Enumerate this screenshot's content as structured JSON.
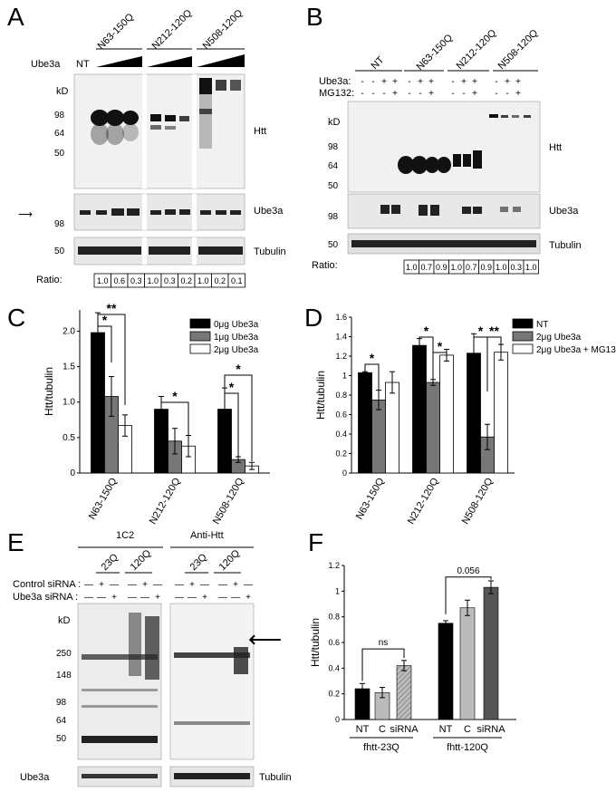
{
  "panels": {
    "A": {
      "letter": "A",
      "ube3a_label": "Ube3a",
      "nt": "NT",
      "groups": [
        "N63-150Q",
        "N212-120Q",
        "N508-120Q"
      ],
      "kd": "kD",
      "markers": [
        "98",
        "64",
        "50"
      ],
      "ube3a_marker": "98",
      "tub_marker": "50",
      "blot_labels": [
        "Htt",
        "Ube3a",
        "Tubulin"
      ],
      "ratio_label": "Ratio:",
      "ratios": [
        "1.0",
        "0.6",
        "0.3",
        "1.0",
        "0.3",
        "0.2",
        "1.0",
        "0.2",
        "0.1"
      ]
    },
    "B": {
      "letter": "B",
      "groups": [
        "NT",
        "N63-150Q",
        "N212-120Q",
        "N508-120Q"
      ],
      "row_labels": [
        "Ube3a:",
        "MG132:"
      ],
      "ube3a_signs": [
        "-",
        "-",
        "+",
        "+",
        "-",
        "+",
        "+",
        "-",
        "+",
        "+",
        "-",
        "+",
        "+"
      ],
      "mg132_signs": [
        "-",
        "-",
        "-",
        "+",
        "-",
        "-",
        "+",
        "-",
        "-",
        "+",
        "-",
        "-",
        "+"
      ],
      "kd": "kD",
      "markers": [
        "98",
        "64",
        "50"
      ],
      "ube3a_marker": "98",
      "tub_marker": "50",
      "blot_labels": [
        "Htt",
        "Ube3a",
        "Tubulin"
      ],
      "ratio_label": "Ratio:",
      "ratios": [
        "1.0",
        "0.7",
        "0.9",
        "1.0",
        "0.7",
        "0.9",
        "1.0",
        "0.3",
        "1.0"
      ]
    },
    "E": {
      "letter": "E",
      "blot_titles": [
        "1C2",
        "Anti-Htt"
      ],
      "sub_groups": [
        "23Q",
        "120Q",
        "23Q",
        "120Q"
      ],
      "row_labels": [
        "Control siRNA :",
        "Ube3a siRNA :"
      ],
      "control_signs": [
        "—",
        "+",
        "—",
        "—",
        "+",
        "—",
        "—",
        "+",
        "—",
        "—",
        "+",
        "—"
      ],
      "ube3a_signs": [
        "—",
        "—",
        "+",
        "—",
        "—",
        "+",
        "—",
        "—",
        "+",
        "—",
        "—",
        "+"
      ],
      "kd": "kD",
      "markers": [
        "250",
        "148",
        "98",
        "64",
        "50"
      ],
      "bottom_labels": [
        "Ube3a",
        "Tubulin"
      ]
    }
  },
  "chart_data": [
    {
      "panel": "C",
      "type": "bar",
      "ylabel": "Htt/tubulin",
      "ylim": [
        0,
        2.3
      ],
      "yticks": [
        "0",
        "0.5",
        "1.0",
        "1.5",
        "2.0"
      ],
      "categories": [
        "N63-150Q",
        "N212-120Q",
        "N508-120Q"
      ],
      "series": [
        {
          "name": "0μg Ube3a",
          "color": "#000000",
          "values": [
            1.98,
            0.9,
            0.9
          ],
          "errors": [
            0.28,
            0.18,
            0.3
          ]
        },
        {
          "name": "1μg Ube3a",
          "color": "#777777",
          "values": [
            1.08,
            0.45,
            0.19
          ],
          "errors": [
            0.28,
            0.18,
            0.04
          ]
        },
        {
          "name": "2μg Ube3a",
          "color": "#ffffff",
          "values": [
            0.67,
            0.38,
            0.1
          ],
          "errors": [
            0.15,
            0.15,
            0.05
          ]
        }
      ],
      "significance": [
        "*",
        "**",
        "*",
        "*",
        "*"
      ],
      "legend": "top-right"
    },
    {
      "panel": "D",
      "type": "bar",
      "ylabel": "Htt/tubulin",
      "ylim": [
        0,
        1.6
      ],
      "yticks": [
        "0",
        "0.2",
        "0.4",
        "0.6",
        "0.8",
        "1",
        "1.2",
        "1.4",
        "1.6"
      ],
      "categories": [
        "N63-150Q",
        "N212-120Q",
        "N508-120Q"
      ],
      "series": [
        {
          "name": "NT",
          "color": "#000000",
          "values": [
            1.03,
            1.31,
            1.23
          ],
          "errors": [
            0.01,
            0.07,
            0.2
          ]
        },
        {
          "name": "2μg Ube3a",
          "color": "#777777",
          "values": [
            0.75,
            0.93,
            0.37
          ],
          "errors": [
            0.1,
            0.03,
            0.13
          ]
        },
        {
          "name": "2μg Ube3a + MG132",
          "color": "#ffffff",
          "values": [
            0.93,
            1.21,
            1.24
          ],
          "errors": [
            0.11,
            0.06,
            0.08
          ]
        }
      ],
      "significance": [
        "*",
        "*",
        "*",
        "*",
        "**"
      ],
      "legend": "top-right"
    },
    {
      "panel": "F",
      "type": "bar",
      "ylabel": "Htt/tubulin",
      "ylim": [
        0,
        1.2
      ],
      "yticks": [
        "0",
        "0.2",
        "0.4",
        "0.6",
        "0.8",
        "1",
        "1.2"
      ],
      "categories": [
        "NT",
        "C",
        "siRNA",
        "NT",
        "C",
        "siRNA"
      ],
      "groups": [
        "fhtt-23Q",
        "fhtt-120Q"
      ],
      "values": [
        0.24,
        0.21,
        0.42,
        0.75,
        0.87,
        1.03
      ],
      "errors": [
        0.04,
        0.04,
        0.04,
        0.02,
        0.06,
        0.05
      ],
      "colors": [
        "#000000",
        "#bbbbbb",
        "#999999",
        "#000000",
        "#bbbbbb",
        "#555555"
      ],
      "significance": [
        "ns",
        "0.056"
      ]
    }
  ]
}
